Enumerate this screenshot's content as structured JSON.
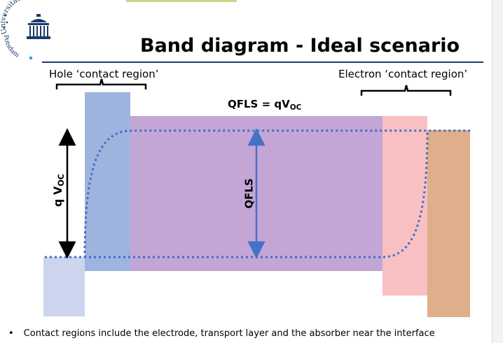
{
  "logo": {
    "text_top": "Universität",
    "text_bottom": "Potsdam"
  },
  "title": "Band diagram - Ideal scenario",
  "labels": {
    "hole_contact": "Hole ‘contact region’",
    "electron_contact": "Electron ‘contact region’",
    "qfls_eq_prefix": "QFLS = qV",
    "qfls_eq_sub": "OC",
    "qfls_arrow": "QFLS",
    "qvoc_prefix": "q V",
    "qvoc_sub": "OC"
  },
  "bullet": "Contact regions include the electrode, transport layer and the absorber near the interface",
  "colors": {
    "absorber": "#c3a6d6",
    "hole_layer": "#9fb3df",
    "hole_electrode": "#cdd4ee",
    "electron_layer": "#f8c0c3",
    "electron_electrode": "#dfae8a",
    "fermi_line": "#3f6fc4",
    "arrow": "#4472c4",
    "title_rule": "#1b3a6b"
  }
}
